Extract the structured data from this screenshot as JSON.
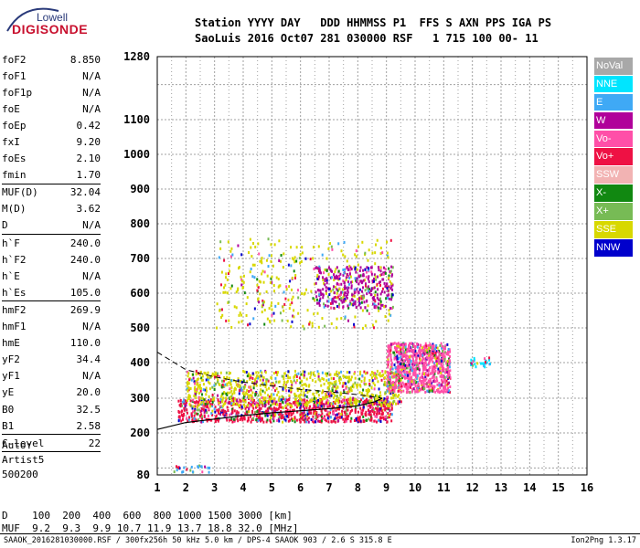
{
  "logo": {
    "line1": "Lowell",
    "line2": "DIGISONDE"
  },
  "header": {
    "labels": "Station YYYY DAY   DDD HHMMSS P1  FFS S AXN PPS IGA PS",
    "values": "SaoLuis 2016 Oct07 281 030000 RSF   1 715 100 00- 11"
  },
  "params": [
    {
      "name": "foF2",
      "value": "8.850"
    },
    {
      "name": "foF1",
      "value": "N/A"
    },
    {
      "name": "foF1p",
      "value": "N/A"
    },
    {
      "name": "foE",
      "value": "N/A"
    },
    {
      "name": "foEp",
      "value": "0.42"
    },
    {
      "name": "fxI",
      "value": "9.20"
    },
    {
      "name": "foEs",
      "value": "2.10"
    },
    {
      "name": "fmin",
      "value": "1.70"
    },
    {
      "name": "MUF(D)",
      "value": "32.04"
    },
    {
      "name": "M(D)",
      "value": "3.62"
    },
    {
      "name": "D",
      "value": "N/A"
    },
    {
      "name": "h`F",
      "value": "240.0"
    },
    {
      "name": "h`F2",
      "value": "240.0"
    },
    {
      "name": "h`E",
      "value": "N/A"
    },
    {
      "name": "h`Es",
      "value": "105.0"
    },
    {
      "name": "hmF2",
      "value": "269.9"
    },
    {
      "name": "hmF1",
      "value": "N/A"
    },
    {
      "name": "hmE",
      "value": "110.0"
    },
    {
      "name": "yF2",
      "value": "34.4"
    },
    {
      "name": "yF1",
      "value": "N/A"
    },
    {
      "name": "yE",
      "value": "20.0"
    },
    {
      "name": "B0",
      "value": "32.5"
    },
    {
      "name": "B1",
      "value": "2.58"
    },
    {
      "name": "C-level",
      "value": "22"
    }
  ],
  "auto": {
    "line1": "Auto:",
    "line2": "Artist5",
    "line3": "500200"
  },
  "legend": [
    {
      "label": "NoVal",
      "color": "#a8a8a8"
    },
    {
      "label": "NNE",
      "color": "#00e5ff"
    },
    {
      "label": "E",
      "color": "#3fa9f5"
    },
    {
      "label": "W",
      "color": "#b0009a"
    },
    {
      "label": "Vo-",
      "color": "#ff4fa8"
    },
    {
      "label": "Vo+",
      "color": "#ee1144"
    },
    {
      "label": "SSW",
      "color": "#f2b3b3"
    },
    {
      "label": "X-",
      "color": "#118811"
    },
    {
      "label": "X+",
      "color": "#77bb55"
    },
    {
      "label": "SSE",
      "color": "#d8d800"
    },
    {
      "label": "NNW",
      "color": "#0000cc"
    }
  ],
  "dtable": {
    "d_row": "D    100  200  400  600  800 1000 1500 3000 [km]",
    "muf_row": "MUF  9.2  9.3  9.9 10.7 11.9 13.7 18.8 32.0 [MHz]"
  },
  "footer": {
    "left": "SAAOK_2016281030000.RSF / 300fx256h 50 kHz 5.0 km / DPS-4 SAAOK 903 / 2.6 S 315.8 E",
    "right": "Ion2Png 1.3.17"
  },
  "chart_data": {
    "type": "scatter",
    "title": "",
    "xlabel": "",
    "ylabel": "",
    "xlim": [
      1,
      16
    ],
    "ylim": [
      80,
      1280
    ],
    "x_ticks": [
      1,
      2,
      3,
      4,
      5,
      6,
      7,
      8,
      9,
      10,
      11,
      12,
      13,
      14,
      15,
      16
    ],
    "y_ticks": [
      80,
      200,
      300,
      400,
      500,
      600,
      700,
      800,
      900,
      1000,
      1100,
      1280
    ],
    "grid": true,
    "clusters": [
      {
        "name": "F trace",
        "color": "#ee1144",
        "x": [
          1.7,
          9.2
        ],
        "y": [
          235,
          300
        ],
        "density": "high"
      },
      {
        "name": "F trace upper",
        "color": "#d8d800",
        "x": [
          2.0,
          9.5
        ],
        "y": [
          280,
          380
        ],
        "density": "high"
      },
      {
        "name": "diffuse echoes",
        "color": "#d8d800",
        "x": [
          3.0,
          9.2
        ],
        "y": [
          500,
          760
        ],
        "density": "medium"
      },
      {
        "name": "second hop",
        "color": "#b0009a",
        "x": [
          6.5,
          9.2
        ],
        "y": [
          560,
          680
        ],
        "density": "medium"
      },
      {
        "name": "spread F",
        "color": "#ff4fa8",
        "x": [
          9.0,
          11.2
        ],
        "y": [
          320,
          460
        ],
        "density": "high"
      },
      {
        "name": "Es trace",
        "color": "#3fa9f5",
        "x": [
          1.5,
          2.8
        ],
        "y": [
          90,
          110
        ],
        "density": "low"
      },
      {
        "name": "oblique echoes",
        "color": "#00e5ff",
        "x": [
          11.9,
          12.6
        ],
        "y": [
          390,
          420
        ],
        "density": "low"
      }
    ],
    "profile_curve": {
      "x": [
        1.0,
        2.0,
        3.0,
        4.0,
        5.0,
        6.0,
        7.0,
        8.0,
        8.6,
        8.85
      ],
      "y": [
        210,
        230,
        240,
        250,
        258,
        264,
        270,
        278,
        290,
        300
      ]
    },
    "profile_dashed": {
      "x": [
        1.0,
        2.0,
        3.0,
        4.0,
        5.0,
        6.0,
        7.0,
        8.0,
        8.85
      ],
      "y": [
        430,
        380,
        360,
        345,
        335,
        325,
        318,
        310,
        300
      ]
    }
  }
}
